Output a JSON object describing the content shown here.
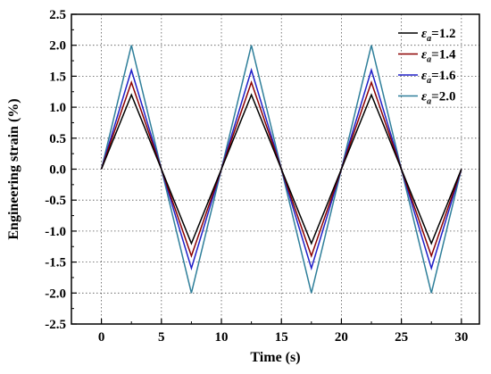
{
  "chart_data": {
    "type": "line",
    "title": "",
    "xlabel": "Time (s)",
    "ylabel": "Engineering strain (%)",
    "xlim": [
      -2.5,
      31.5
    ],
    "ylim": [
      -2.5,
      2.5
    ],
    "x_ticks": [
      "0",
      "5",
      "10",
      "15",
      "20",
      "25",
      "30"
    ],
    "y_ticks": [
      "2.5",
      "2.0",
      "1.5",
      "1.0",
      "0.5",
      "0.0",
      "-0.5",
      "-1.0",
      "-1.5",
      "-2.0",
      "-2.5"
    ],
    "grid": true,
    "legend_position": "top-right",
    "x": [
      0,
      2.5,
      7.5,
      12.5,
      17.5,
      22.5,
      27.5,
      30
    ],
    "series": [
      {
        "label_main": "ε",
        "label_sub": "a",
        "label_value": "=1.2",
        "color": "#000000",
        "values": [
          0,
          1.2,
          -1.2,
          1.2,
          -1.2,
          1.2,
          -1.2,
          0
        ]
      },
      {
        "label_main": "ε",
        "label_sub": "a",
        "label_value": "=1.4",
        "color": "#8b0000",
        "values": [
          0,
          1.4,
          -1.4,
          1.4,
          -1.4,
          1.4,
          -1.4,
          0
        ]
      },
      {
        "label_main": "ε",
        "label_sub": "a",
        "label_value": "=1.6",
        "color": "#2020c8",
        "values": [
          0,
          1.6,
          -1.6,
          1.6,
          -1.6,
          1.6,
          -1.6,
          0
        ]
      },
      {
        "label_main": "ε",
        "label_sub": "a",
        "label_value": "=2.0",
        "color": "#2f7f9a",
        "values": [
          0,
          2.0,
          -2.0,
          2.0,
          -2.0,
          2.0,
          -2.0,
          0
        ]
      }
    ]
  }
}
